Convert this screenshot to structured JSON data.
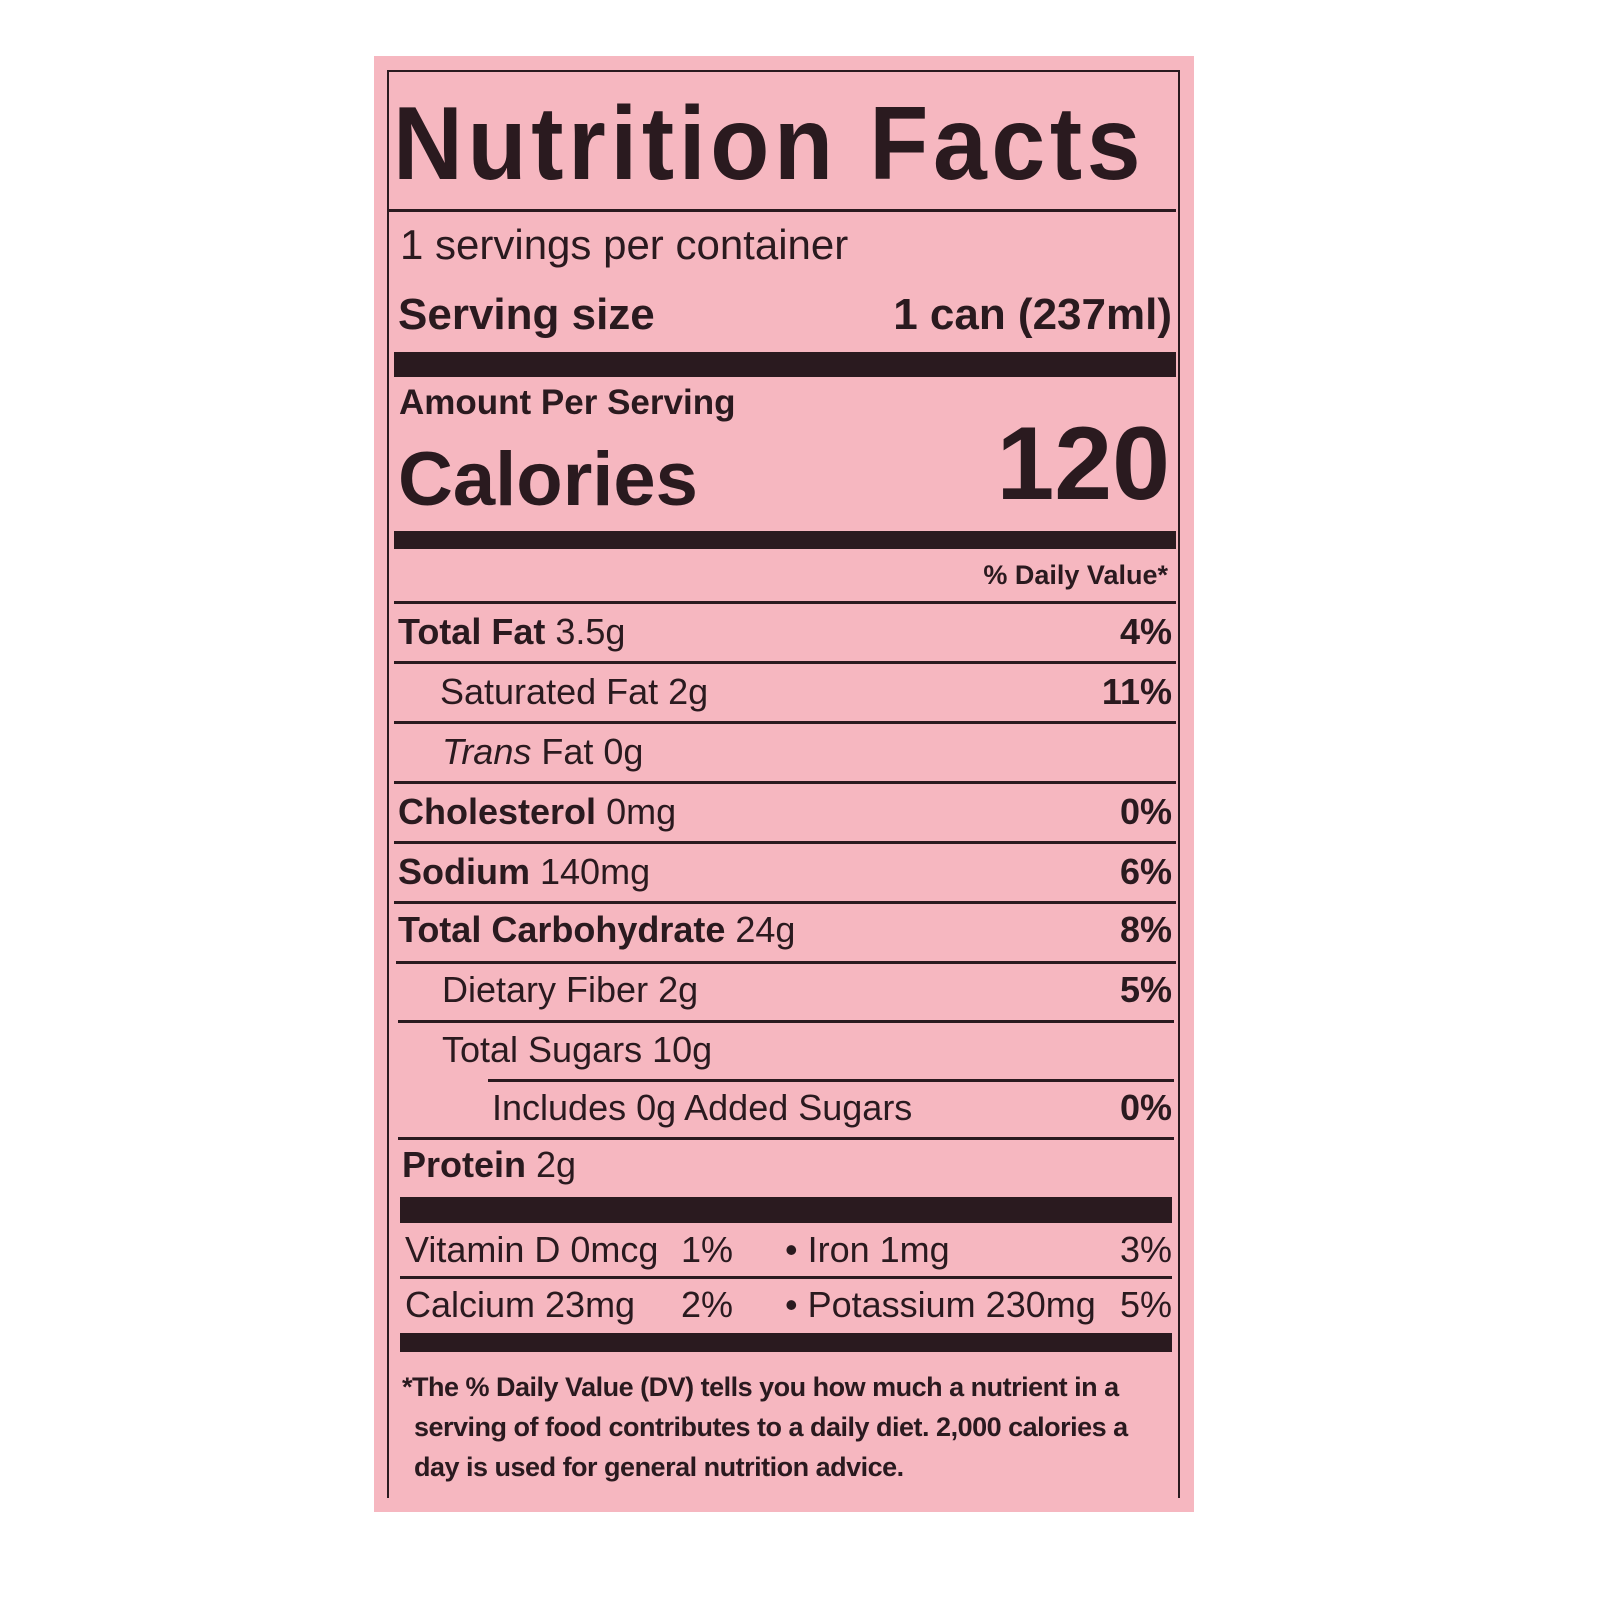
{
  "label": {
    "title": "Nutrition Facts",
    "servings_per_container": "1 servings per container",
    "serving_size_label": "Serving size",
    "serving_size_value": "1 can (237ml)",
    "amount_per_serving": "Amount Per Serving",
    "calories_label": "Calories",
    "calories_value": "120",
    "daily_value_header": "% Daily Value*",
    "nutrients": [
      {
        "name": "Total Fat",
        "amount": "3.5g",
        "dv": "4%"
      },
      {
        "name": "Saturated Fat",
        "amount": "2g",
        "dv": "11%"
      },
      {
        "name": "Trans",
        "name_rest": "Fat",
        "amount": "0g",
        "dv": ""
      },
      {
        "name": "Cholesterol",
        "amount": "0mg",
        "dv": "0%"
      },
      {
        "name": "Sodium",
        "amount": "140mg",
        "dv": "6%"
      },
      {
        "name": "Total Carbohydrate",
        "amount": "24g",
        "dv": "8%"
      },
      {
        "name": "Dietary Fiber",
        "amount": "2g",
        "dv": "5%"
      },
      {
        "name": "Total Sugars",
        "amount": "10g",
        "dv": ""
      },
      {
        "name": "Includes 0g Added Sugars",
        "amount": "",
        "dv": "0%"
      },
      {
        "name": "Protein",
        "amount": "2g",
        "dv": ""
      }
    ],
    "vitamins": [
      {
        "left": "Vitamin D 0mcg",
        "left_dv": "1%",
        "right": "• Iron 1mg",
        "right_dv": "3%"
      },
      {
        "left": "Calcium 23mg",
        "left_dv": "2%",
        "right": "• Potassium 230mg",
        "right_dv": "5%"
      }
    ],
    "footnote": [
      "*The % Daily Value (DV) tells you how much a nutrient in a",
      "serving of food contributes to a daily diet. 2,000 calories a",
      "day is used for general nutrition advice."
    ]
  },
  "colors": {
    "background": "#f6b7c0",
    "ink": "#2a1a1f"
  }
}
